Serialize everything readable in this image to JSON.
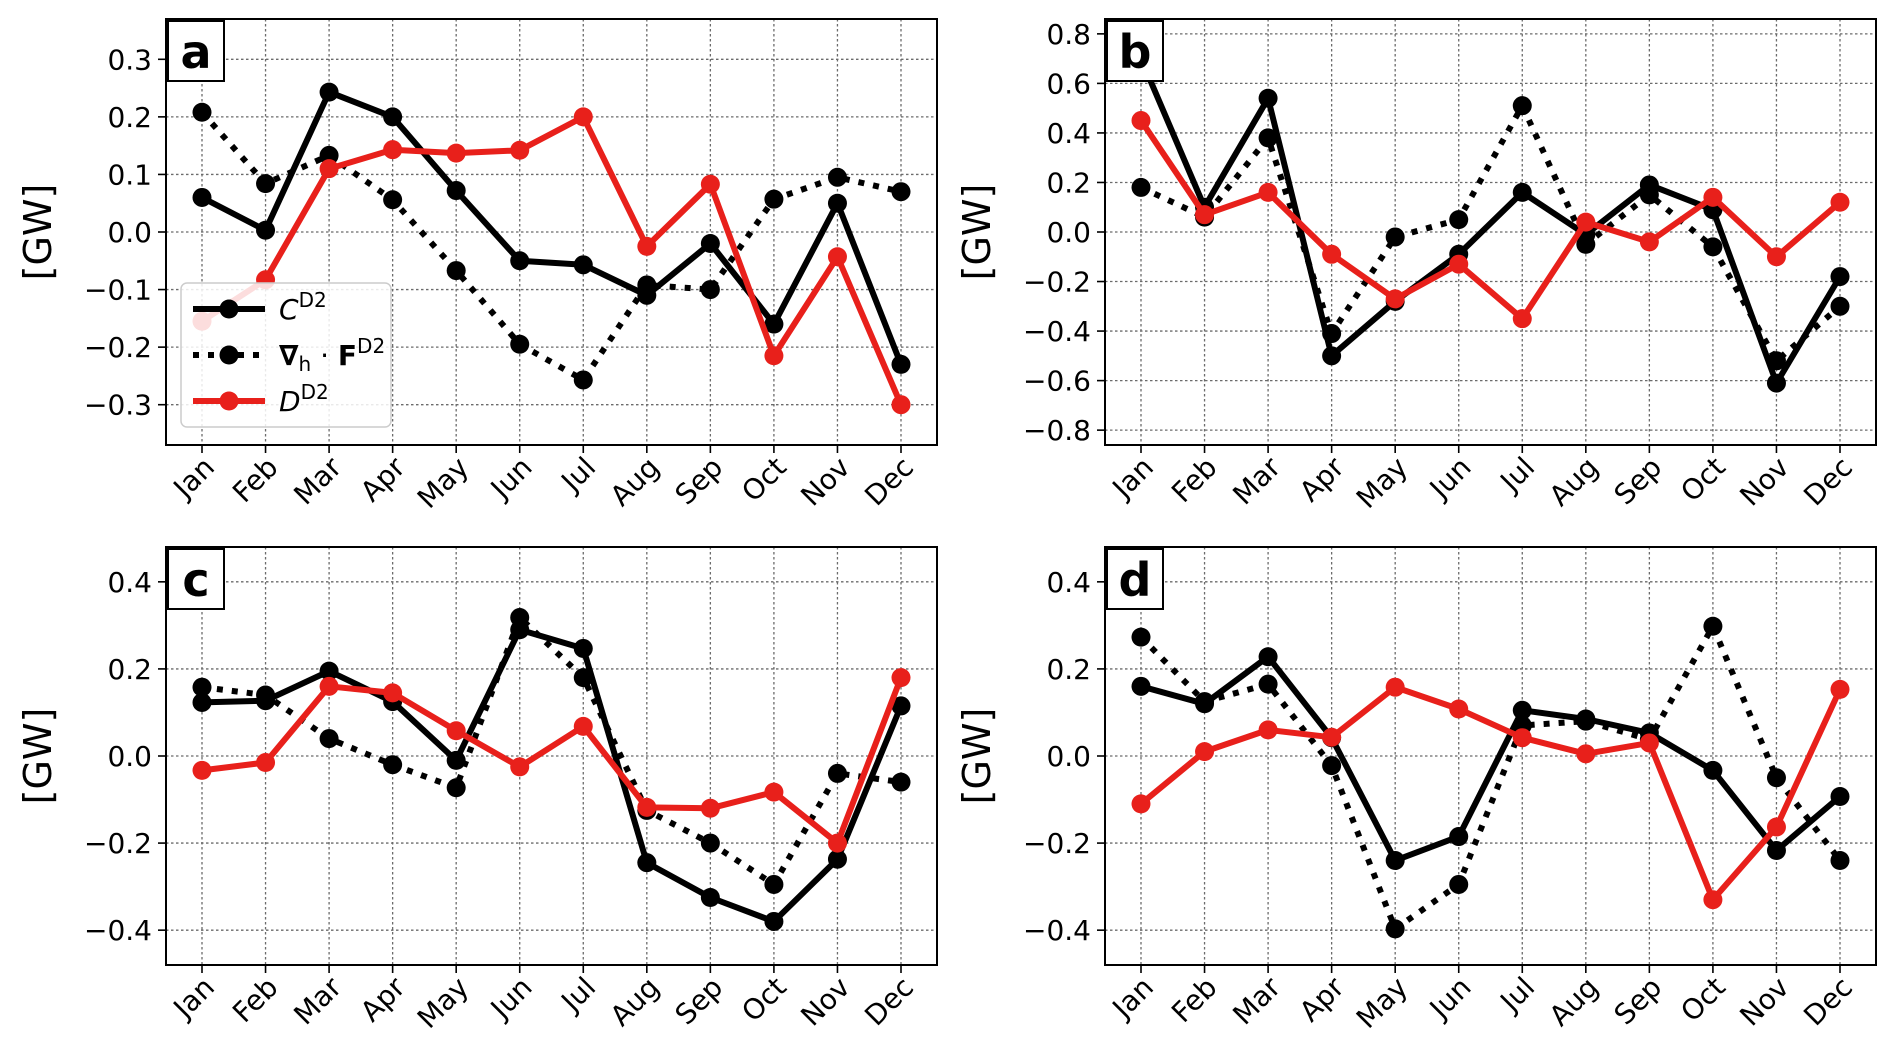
{
  "chart_data": [
    {
      "type": "line",
      "panel": "a",
      "ylabel": "[GW]",
      "categories": [
        "Jan",
        "Feb",
        "Mar",
        "Apr",
        "May",
        "Jun",
        "Jul",
        "Aug",
        "Sep",
        "Oct",
        "Nov",
        "Dec"
      ],
      "ylim": [
        -0.37,
        0.37
      ],
      "yticks": [
        0.3,
        0.2,
        0.1,
        0.0,
        -0.1,
        -0.2,
        -0.3
      ],
      "ytick_labels": [
        "0.3",
        "0.2",
        "0.1",
        "0.0",
        "−0.1",
        "−0.2",
        "−0.3"
      ],
      "grid": true,
      "legend": true,
      "legend_location": "lower-left",
      "series": [
        {
          "name": "C",
          "values": [
            0.06,
            0.003,
            0.243,
            0.2,
            0.072,
            -0.05,
            -0.057,
            -0.11,
            -0.02,
            -0.16,
            0.05,
            -0.23
          ]
        },
        {
          "name": "div",
          "values": [
            0.208,
            0.084,
            0.133,
            0.056,
            -0.067,
            -0.195,
            -0.257,
            -0.092,
            -0.1,
            0.057,
            0.095,
            0.07
          ]
        },
        {
          "name": "D",
          "values": [
            -0.155,
            -0.083,
            0.11,
            0.143,
            0.137,
            0.142,
            0.2,
            -0.025,
            0.083,
            -0.215,
            -0.043,
            -0.3
          ]
        }
      ]
    },
    {
      "type": "line",
      "panel": "b",
      "ylabel": "[GW]",
      "categories": [
        "Jan",
        "Feb",
        "Mar",
        "Apr",
        "May",
        "Jun",
        "Jul",
        "Aug",
        "Sep",
        "Oct",
        "Nov",
        "Dec"
      ],
      "ylim": [
        -0.86,
        0.86
      ],
      "yticks": [
        0.8,
        0.6,
        0.4,
        0.2,
        0.0,
        -0.2,
        -0.4,
        -0.6,
        -0.8
      ],
      "ytick_labels": [
        "0.8",
        "0.6",
        "0.4",
        "0.2",
        "0.0",
        "−0.2",
        "−0.4",
        "−0.6",
        "−0.8"
      ],
      "grid": true,
      "legend": false,
      "series": [
        {
          "name": "C",
          "values": [
            0.7,
            0.1,
            0.54,
            -0.5,
            -0.28,
            -0.09,
            0.16,
            -0.01,
            0.19,
            0.09,
            -0.61,
            -0.18
          ]
        },
        {
          "name": "div",
          "values": [
            0.18,
            0.06,
            0.38,
            -0.41,
            -0.02,
            0.05,
            0.51,
            -0.05,
            0.15,
            -0.06,
            -0.52,
            -0.3
          ]
        },
        {
          "name": "D",
          "values": [
            0.45,
            0.07,
            0.16,
            -0.09,
            -0.27,
            -0.13,
            -0.35,
            0.04,
            -0.04,
            0.14,
            -0.1,
            0.12
          ]
        }
      ]
    },
    {
      "type": "line",
      "panel": "c",
      "ylabel": "[GW]",
      "categories": [
        "Jan",
        "Feb",
        "Mar",
        "Apr",
        "May",
        "Jun",
        "Jul",
        "Aug",
        "Sep",
        "Oct",
        "Nov",
        "Dec"
      ],
      "ylim": [
        -0.48,
        0.48
      ],
      "yticks": [
        0.4,
        0.2,
        0.0,
        -0.2,
        -0.4
      ],
      "ytick_labels": [
        "0.4",
        "0.2",
        "0.0",
        "−0.2",
        "−0.4"
      ],
      "grid": true,
      "legend": false,
      "series": [
        {
          "name": "C",
          "values": [
            0.123,
            0.127,
            0.195,
            0.125,
            -0.01,
            0.29,
            0.247,
            -0.245,
            -0.325,
            -0.38,
            -0.237,
            0.115
          ]
        },
        {
          "name": "div",
          "values": [
            0.158,
            0.14,
            0.04,
            -0.02,
            -0.073,
            0.318,
            0.18,
            -0.125,
            -0.2,
            -0.295,
            -0.04,
            -0.06
          ]
        },
        {
          "name": "D",
          "values": [
            -0.033,
            -0.015,
            0.16,
            0.145,
            0.058,
            -0.025,
            0.068,
            -0.118,
            -0.12,
            -0.083,
            -0.2,
            0.18
          ]
        }
      ]
    },
    {
      "type": "line",
      "panel": "d",
      "ylabel": "[GW]",
      "categories": [
        "Jan",
        "Feb",
        "Mar",
        "Apr",
        "May",
        "Jun",
        "Jul",
        "Aug",
        "Sep",
        "Oct",
        "Nov",
        "Dec"
      ],
      "ylim": [
        -0.48,
        0.48
      ],
      "yticks": [
        0.4,
        0.2,
        0.0,
        -0.2,
        -0.4
      ],
      "ytick_labels": [
        "0.4",
        "0.2",
        "0.0",
        "−0.2",
        "−0.4"
      ],
      "grid": true,
      "legend": false,
      "series": [
        {
          "name": "C",
          "values": [
            0.16,
            0.12,
            0.228,
            0.042,
            -0.24,
            -0.185,
            0.105,
            0.085,
            0.053,
            -0.033,
            -0.217,
            -0.093
          ]
        },
        {
          "name": "div",
          "values": [
            0.273,
            0.125,
            0.165,
            -0.022,
            -0.397,
            -0.295,
            0.07,
            0.08,
            0.038,
            0.298,
            -0.05,
            -0.24
          ]
        },
        {
          "name": "D",
          "values": [
            -0.11,
            0.01,
            0.06,
            0.043,
            0.158,
            0.108,
            0.042,
            0.005,
            0.03,
            -0.33,
            -0.163,
            0.153
          ]
        }
      ]
    }
  ],
  "legend": {
    "entries": [
      {
        "main": "C",
        "sup": "D2"
      },
      {
        "main": "∇",
        "sub": "h",
        "mid": " · ",
        "bold": "F",
        "sup": "D2"
      },
      {
        "main": "D",
        "sup": "D2"
      }
    ]
  },
  "colors": {
    "C": "#000000",
    "div": "#000000",
    "D": "#e8201b",
    "grid": "#6b6b6b"
  }
}
